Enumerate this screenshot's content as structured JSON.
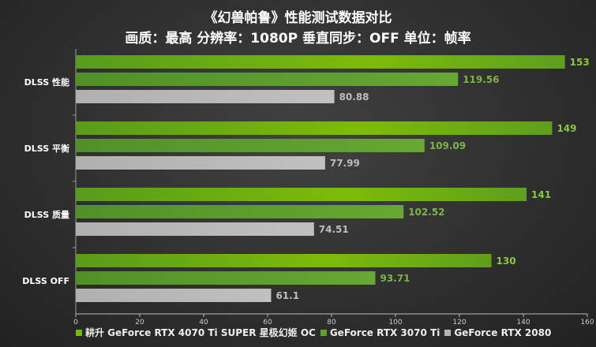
{
  "chart_data": {
    "type": "bar",
    "orientation": "horizontal",
    "title": "《幻兽帕鲁》性能测试数据对比",
    "subtitle": "画质：最高 分辨率：1080P 垂直同步：OFF 单位：帧率",
    "categories": [
      "DLSS 性能",
      "DLSS 平衡",
      "DLSS 质量",
      "DLSS OFF"
    ],
    "series": [
      {
        "name": "耕升 GeForce RTX 4070 Ti SUPER 星极幻姬 OC",
        "color": "#76b900",
        "values": [
          153,
          149,
          141,
          130
        ]
      },
      {
        "name": "GeForce RTX 3070 Ti",
        "color": "#5ea32a",
        "values": [
          119.56,
          109.09,
          102.52,
          93.71
        ]
      },
      {
        "name": "GeForce RTX 2080",
        "color": "#b4b4b4",
        "values": [
          80.88,
          77.99,
          74.51,
          61.1
        ]
      }
    ],
    "value_labels": [
      [
        "153",
        "149",
        "141",
        "130"
      ],
      [
        "119.56",
        "109.09",
        "102.52",
        "93.71"
      ],
      [
        "80.88",
        "77.99",
        "74.51",
        "61.1"
      ]
    ],
    "label_colors": [
      "#8cc63f",
      "#7ab648",
      "#bdbdbd"
    ],
    "xlim": [
      0,
      160
    ],
    "xticks": [
      "0",
      "20",
      "40",
      "60",
      "80",
      "100",
      "120",
      "140",
      "160"
    ],
    "grid": false,
    "legend_position": "bottom"
  }
}
